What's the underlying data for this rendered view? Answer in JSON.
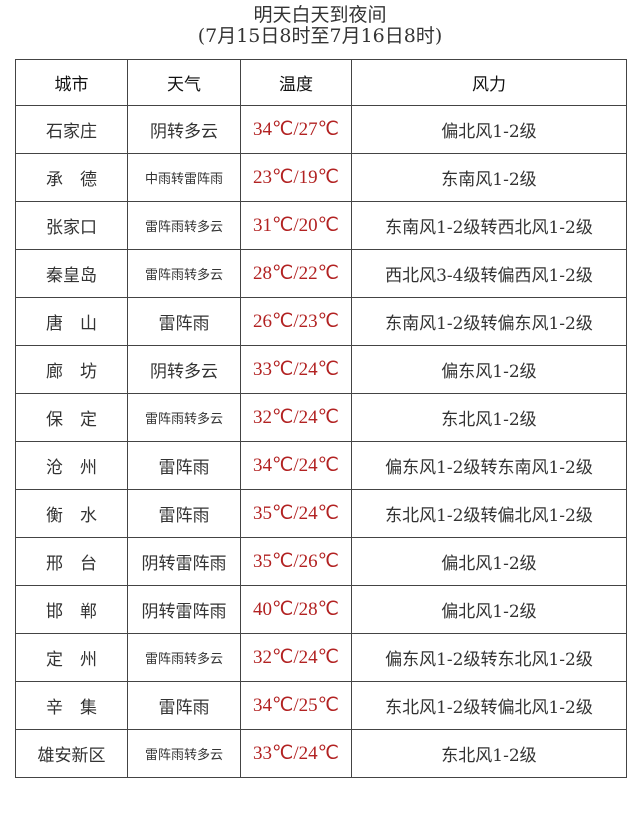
{
  "title": "明天白天到夜间",
  "subtitle": "(7月15日8时至7月16日8时)",
  "colors": {
    "temperature": "#b22222",
    "text": "#333333",
    "border": "#444444"
  },
  "headers": [
    "城市",
    "天气",
    "温度",
    "风力"
  ],
  "rows": [
    {
      "city": "石家庄",
      "weather": "阴转多云",
      "temp": "34℃/27℃",
      "wind": "偏北风1-2级"
    },
    {
      "city": "承　德",
      "weather": "中雨转雷阵雨",
      "temp": "23℃/19℃",
      "wind": "东南风1-2级"
    },
    {
      "city": "张家口",
      "weather": "雷阵雨转多云",
      "temp": "31℃/20℃",
      "wind": "东南风1-2级转西北风1-2级"
    },
    {
      "city": "秦皇岛",
      "weather": "雷阵雨转多云",
      "temp": "28℃/22℃",
      "wind": "西北风3-4级转偏西风1-2级"
    },
    {
      "city": "唐　山",
      "weather": "雷阵雨",
      "temp": "26℃/23℃",
      "wind": "东南风1-2级转偏东风1-2级"
    },
    {
      "city": "廊　坊",
      "weather": "阴转多云",
      "temp": "33℃/24℃",
      "wind": "偏东风1-2级"
    },
    {
      "city": "保　定",
      "weather": "雷阵雨转多云",
      "temp": "32℃/24℃",
      "wind": "东北风1-2级"
    },
    {
      "city": "沧　州",
      "weather": "雷阵雨",
      "temp": "34℃/24℃",
      "wind": "偏东风1-2级转东南风1-2级"
    },
    {
      "city": "衡　水",
      "weather": "雷阵雨",
      "temp": "35℃/24℃",
      "wind": "东北风1-2级转偏北风1-2级"
    },
    {
      "city": "邢　台",
      "weather": "阴转雷阵雨",
      "temp": "35℃/26℃",
      "wind": "偏北风1-2级"
    },
    {
      "city": "邯　郸",
      "weather": "阴转雷阵雨",
      "temp": "40℃/28℃",
      "wind": "偏北风1-2级"
    },
    {
      "city": "定　州",
      "weather": "雷阵雨转多云",
      "temp": "32℃/24℃",
      "wind": "偏东风1-2级转东北风1-2级"
    },
    {
      "city": "辛　集",
      "weather": "雷阵雨",
      "temp": "34℃/25℃",
      "wind": "东北风1-2级转偏北风1-2级"
    },
    {
      "city": "雄安新区",
      "weather": "雷阵雨转多云",
      "temp": "33℃/24℃",
      "wind": "东北风1-2级"
    }
  ]
}
